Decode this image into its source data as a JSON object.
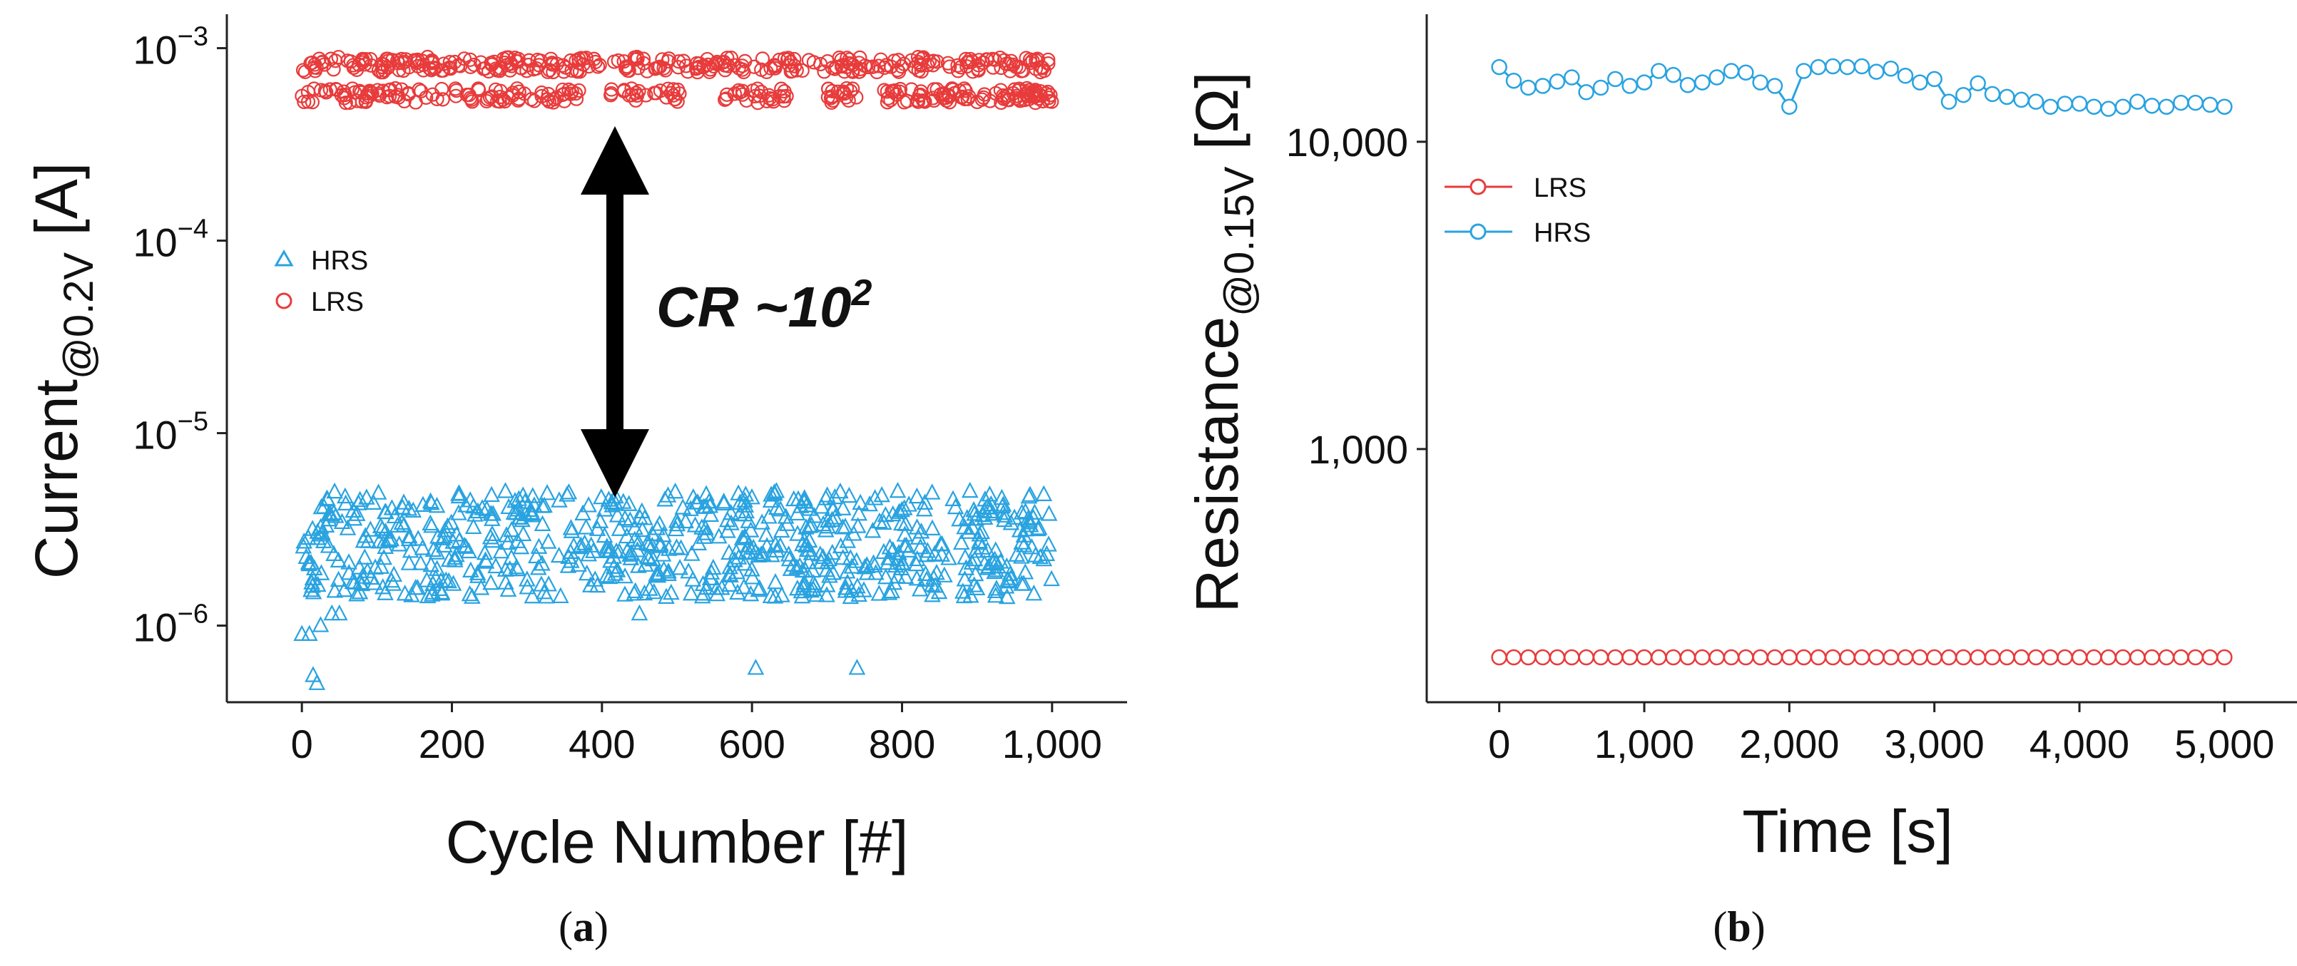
{
  "chart_data": [
    {
      "type": "scatter",
      "panel_label": {
        "open": "(",
        "letter": "a",
        "close": ")"
      },
      "xlabel": "Cycle Number [#]",
      "ylabel": {
        "main": "Current",
        "subscript": "@0.2V",
        "unit": " [A]"
      },
      "xlim": [
        -100,
        1100
      ],
      "ylim": [
        4e-07,
        0.0015
      ],
      "yscale": "log",
      "x_ticks": [
        0,
        200,
        400,
        600,
        800,
        1000
      ],
      "x_tick_labels": [
        "0",
        "200",
        "400",
        "600",
        "800",
        "1,000"
      ],
      "y_ticks": [
        1e-06,
        1e-05,
        0.0001,
        0.001
      ],
      "y_tick_labels": [
        {
          "base": "10",
          "exp": "−6"
        },
        {
          "base": "10",
          "exp": "−5"
        },
        {
          "base": "10",
          "exp": "−4"
        },
        {
          "base": "10",
          "exp": "−3"
        }
      ],
      "legend": {
        "placement": "middle-left",
        "entries": [
          "HRS",
          "LRS"
        ]
      },
      "annotation": {
        "text": "CR ~10",
        "superscript": "2",
        "arrow": "double-headed vertical between HRS and LRS at x ≈ 420"
      },
      "series": [
        {
          "name": "HRS",
          "marker": "triangle",
          "color": "#29a3e0",
          "x_range": [
            0,
            1000
          ],
          "n_points": 700,
          "typical_range": [
            1.4e-06,
            5e-06
          ],
          "outliers": [
            [
              0,
              9e-07
            ],
            [
              10,
              9e-07
            ],
            [
              15,
              5.5e-07
            ],
            [
              20,
              5e-07
            ],
            [
              25,
              1e-06
            ],
            [
              40,
              1.15e-06
            ],
            [
              50,
              1.15e-06
            ],
            [
              450,
              1.15e-06
            ],
            [
              605,
              6e-07
            ],
            [
              740,
              6e-07
            ],
            [
              940,
              1.4e-06
            ]
          ]
        },
        {
          "name": "LRS",
          "marker": "circle",
          "color": "#e83b3b",
          "x_range": [
            0,
            1000
          ],
          "n_points": 650,
          "bands": [
            [
              0.00075,
              0.0009
            ],
            [
              0.00052,
              0.00062
            ]
          ]
        }
      ]
    },
    {
      "type": "line",
      "panel_label": {
        "open": "(",
        "letter": "b",
        "close": ")"
      },
      "xlabel": "Time [s]",
      "ylabel": {
        "main": "Resistance",
        "subscript": "@0.15V",
        "unit": " [Ω]"
      },
      "xlim": [
        -500,
        5500
      ],
      "ylim": [
        150,
        26000
      ],
      "yscale": "log",
      "x_ticks": [
        0,
        1000,
        2000,
        3000,
        4000,
        5000
      ],
      "x_tick_labels": [
        "0",
        "1,000",
        "2,000",
        "3,000",
        "4,000",
        "5,000"
      ],
      "y_ticks": [
        1000,
        10000
      ],
      "y_tick_labels": [
        "1,000",
        "10,000"
      ],
      "legend": {
        "placement": "top-left",
        "entries": [
          "LRS",
          "HRS"
        ]
      },
      "series": [
        {
          "name": "LRS",
          "marker": "circle",
          "color": "#e83b3b",
          "x": [
            0,
            100,
            200,
            300,
            400,
            500,
            600,
            700,
            800,
            900,
            1000,
            1100,
            1200,
            1300,
            1400,
            1500,
            1600,
            1700,
            1800,
            1900,
            2000,
            2100,
            2200,
            2300,
            2400,
            2500,
            2600,
            2700,
            2800,
            2900,
            3000,
            3100,
            3200,
            3300,
            3400,
            3500,
            3600,
            3700,
            3800,
            3900,
            4000,
            4100,
            4200,
            4300,
            4400,
            4500,
            4600,
            4700,
            4800,
            4900,
            5000
          ],
          "y": [
            210,
            210,
            210,
            210,
            210,
            210,
            210,
            210,
            210,
            210,
            210,
            210,
            210,
            210,
            210,
            210,
            210,
            210,
            210,
            210,
            210,
            210,
            210,
            210,
            210,
            210,
            210,
            210,
            210,
            210,
            210,
            210,
            210,
            210,
            210,
            210,
            210,
            210,
            210,
            210,
            210,
            210,
            210,
            210,
            210,
            210,
            210,
            210,
            210,
            210,
            210
          ]
        },
        {
          "name": "HRS",
          "marker": "circle",
          "color": "#29a3e0",
          "x": [
            0,
            100,
            200,
            300,
            400,
            500,
            600,
            700,
            800,
            900,
            1000,
            1100,
            1200,
            1300,
            1400,
            1500,
            1600,
            1700,
            1800,
            1900,
            2000,
            2100,
            2200,
            2300,
            2400,
            2500,
            2600,
            2700,
            2800,
            2900,
            3000,
            3100,
            3200,
            3300,
            3400,
            3500,
            3600,
            3700,
            3800,
            3900,
            4000,
            4100,
            4200,
            4300,
            4400,
            4500,
            4600,
            4700,
            4800,
            4900,
            5000
          ],
          "y": [
            17500,
            15800,
            15000,
            15200,
            15700,
            16200,
            14500,
            15000,
            16000,
            15200,
            15600,
            17000,
            16500,
            15300,
            15600,
            16200,
            17000,
            16800,
            15600,
            15200,
            13000,
            17000,
            17500,
            17600,
            17500,
            17600,
            16900,
            17300,
            16400,
            15600,
            16000,
            13500,
            14200,
            15500,
            14300,
            14000,
            13700,
            13500,
            13000,
            13300,
            13300,
            13000,
            12800,
            13000,
            13500,
            13100,
            13000,
            13400,
            13400,
            13200,
            13000
          ]
        }
      ]
    }
  ]
}
